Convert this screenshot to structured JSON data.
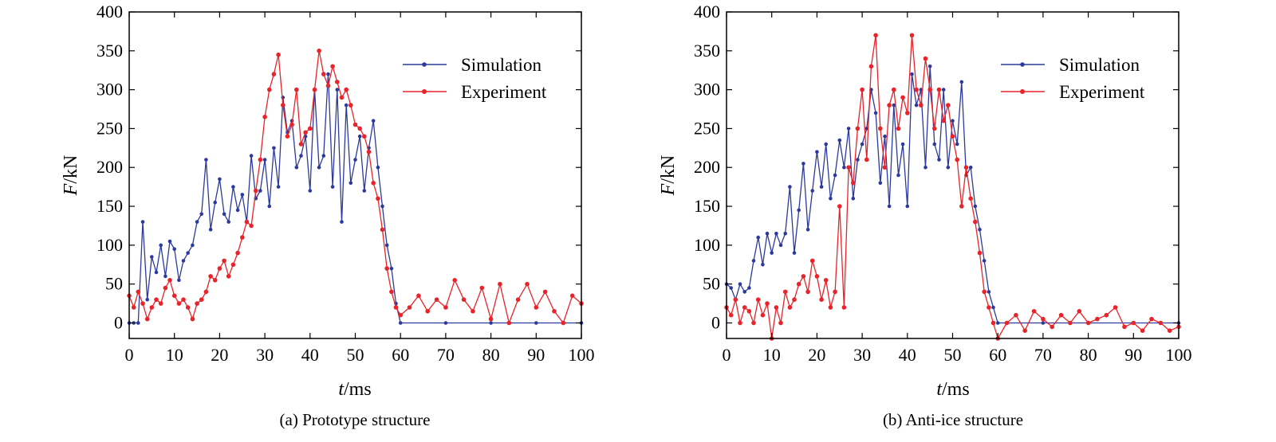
{
  "figure": {
    "panels": [
      {
        "caption": "(a) Prototype structure",
        "xlabel": {
          "italic": "t",
          "rest": "/ms"
        },
        "ylabel": {
          "italic": "F",
          "rest": "/kN"
        },
        "legend": [
          "Simulation",
          "Experiment"
        ]
      },
      {
        "caption": "(b) Anti-ice structure",
        "xlabel": {
          "italic": "t",
          "rest": "/ms"
        },
        "ylabel": {
          "italic": "F",
          "rest": "/kN"
        },
        "legend": [
          "Simulation",
          "Experiment"
        ]
      }
    ]
  },
  "chart_data": [
    {
      "type": "line",
      "title": "",
      "caption": "(a) Prototype structure",
      "xlabel": "t/ms",
      "ylabel": "F/kN",
      "xlim": [
        0,
        100
      ],
      "ylim": [
        -20,
        400
      ],
      "xticks": [
        0,
        10,
        20,
        30,
        40,
        50,
        60,
        70,
        80,
        90,
        100
      ],
      "yticks": [
        0,
        50,
        100,
        150,
        200,
        250,
        300,
        350,
        400
      ],
      "grid": false,
      "legend_position": "top-right",
      "series": [
        {
          "name": "Simulation",
          "color": "#2b3a9c",
          "x": [
            0,
            1,
            2,
            3,
            4,
            5,
            6,
            7,
            8,
            9,
            10,
            11,
            12,
            13,
            14,
            15,
            16,
            17,
            18,
            19,
            20,
            21,
            22,
            23,
            24,
            25,
            26,
            27,
            28,
            29,
            30,
            31,
            32,
            33,
            34,
            35,
            36,
            37,
            38,
            39,
            40,
            41,
            42,
            43,
            44,
            45,
            46,
            47,
            48,
            49,
            50,
            51,
            52,
            53,
            54,
            55,
            56,
            57,
            58,
            59,
            60,
            70,
            80,
            90,
            100
          ],
          "y": [
            0,
            0,
            0,
            130,
            30,
            85,
            65,
            100,
            60,
            105,
            95,
            55,
            80,
            90,
            100,
            130,
            140,
            210,
            120,
            155,
            185,
            140,
            130,
            175,
            145,
            165,
            130,
            215,
            160,
            170,
            210,
            150,
            225,
            175,
            290,
            245,
            260,
            200,
            215,
            240,
            170,
            300,
            200,
            215,
            320,
            175,
            300,
            130,
            280,
            180,
            210,
            240,
            170,
            225,
            260,
            200,
            150,
            100,
            70,
            25,
            0,
            0,
            0,
            0,
            0
          ]
        },
        {
          "name": "Experiment",
          "color": "#e8242a",
          "x": [
            0,
            1,
            2,
            3,
            4,
            5,
            6,
            7,
            8,
            9,
            10,
            11,
            12,
            13,
            14,
            15,
            16,
            17,
            18,
            19,
            20,
            21,
            22,
            23,
            24,
            25,
            26,
            27,
            28,
            29,
            30,
            31,
            32,
            33,
            34,
            35,
            36,
            37,
            38,
            39,
            40,
            41,
            42,
            43,
            44,
            45,
            46,
            47,
            48,
            49,
            50,
            51,
            52,
            53,
            54,
            55,
            56,
            57,
            58,
            59,
            60,
            62,
            64,
            66,
            68,
            70,
            72,
            74,
            76,
            78,
            80,
            82,
            84,
            86,
            88,
            90,
            92,
            94,
            96,
            98,
            100
          ],
          "y": [
            35,
            20,
            40,
            25,
            5,
            20,
            30,
            25,
            45,
            55,
            35,
            25,
            30,
            20,
            5,
            25,
            30,
            40,
            60,
            55,
            70,
            80,
            60,
            75,
            90,
            110,
            130,
            125,
            170,
            210,
            265,
            300,
            320,
            345,
            280,
            240,
            255,
            300,
            230,
            245,
            250,
            300,
            350,
            320,
            305,
            330,
            310,
            290,
            300,
            280,
            255,
            250,
            240,
            220,
            180,
            160,
            120,
            70,
            40,
            20,
            10,
            20,
            35,
            15,
            30,
            20,
            55,
            30,
            15,
            45,
            5,
            50,
            0,
            30,
            50,
            20,
            40,
            15,
            0,
            35,
            25
          ]
        }
      ]
    },
    {
      "type": "line",
      "title": "",
      "caption": "(b) Anti-ice structure",
      "xlabel": "t/ms",
      "ylabel": "F/kN",
      "xlim": [
        0,
        100
      ],
      "ylim": [
        -20,
        400
      ],
      "xticks": [
        0,
        10,
        20,
        30,
        40,
        50,
        60,
        70,
        80,
        90,
        100
      ],
      "yticks": [
        0,
        50,
        100,
        150,
        200,
        250,
        300,
        350,
        400
      ],
      "grid": false,
      "legend_position": "top-right",
      "series": [
        {
          "name": "Simulation",
          "color": "#2b3a9c",
          "x": [
            0,
            1,
            2,
            3,
            4,
            5,
            6,
            7,
            8,
            9,
            10,
            11,
            12,
            13,
            14,
            15,
            16,
            17,
            18,
            19,
            20,
            21,
            22,
            23,
            24,
            25,
            26,
            27,
            28,
            29,
            30,
            31,
            32,
            33,
            34,
            35,
            36,
            37,
            38,
            39,
            40,
            41,
            42,
            43,
            44,
            45,
            46,
            47,
            48,
            49,
            50,
            51,
            52,
            53,
            54,
            55,
            56,
            57,
            58,
            59,
            60,
            70,
            80,
            90,
            100
          ],
          "y": [
            50,
            45,
            30,
            50,
            40,
            45,
            80,
            110,
            75,
            115,
            90,
            115,
            100,
            115,
            175,
            90,
            145,
            205,
            120,
            170,
            220,
            175,
            230,
            160,
            190,
            235,
            200,
            250,
            160,
            210,
            230,
            250,
            300,
            270,
            180,
            240,
            150,
            280,
            190,
            230,
            150,
            320,
            280,
            300,
            200,
            330,
            230,
            210,
            300,
            200,
            260,
            230,
            310,
            190,
            200,
            150,
            120,
            80,
            40,
            20,
            0,
            0,
            0,
            0,
            0
          ]
        },
        {
          "name": "Experiment",
          "color": "#e8242a",
          "x": [
            0,
            1,
            2,
            3,
            4,
            5,
            6,
            7,
            8,
            9,
            10,
            11,
            12,
            13,
            14,
            15,
            16,
            17,
            18,
            19,
            20,
            21,
            22,
            23,
            24,
            25,
            26,
            27,
            28,
            29,
            30,
            31,
            32,
            33,
            34,
            35,
            36,
            37,
            38,
            39,
            40,
            41,
            42,
            43,
            44,
            45,
            46,
            47,
            48,
            49,
            50,
            51,
            52,
            53,
            54,
            55,
            56,
            57,
            58,
            59,
            60,
            62,
            64,
            66,
            68,
            70,
            72,
            74,
            76,
            78,
            80,
            82,
            84,
            86,
            88,
            90,
            92,
            94,
            96,
            98,
            100
          ],
          "y": [
            20,
            10,
            30,
            0,
            20,
            15,
            0,
            30,
            10,
            25,
            -20,
            20,
            0,
            40,
            20,
            30,
            50,
            60,
            40,
            80,
            60,
            30,
            55,
            20,
            40,
            150,
            20,
            200,
            180,
            250,
            300,
            210,
            330,
            370,
            250,
            200,
            280,
            300,
            250,
            290,
            270,
            370,
            300,
            280,
            340,
            300,
            250,
            300,
            260,
            280,
            240,
            210,
            150,
            200,
            160,
            130,
            90,
            40,
            20,
            0,
            -20,
            0,
            10,
            -10,
            15,
            5,
            -5,
            10,
            0,
            15,
            0,
            5,
            10,
            20,
            -5,
            0,
            -10,
            5,
            0,
            -10,
            -5
          ]
        }
      ]
    }
  ]
}
